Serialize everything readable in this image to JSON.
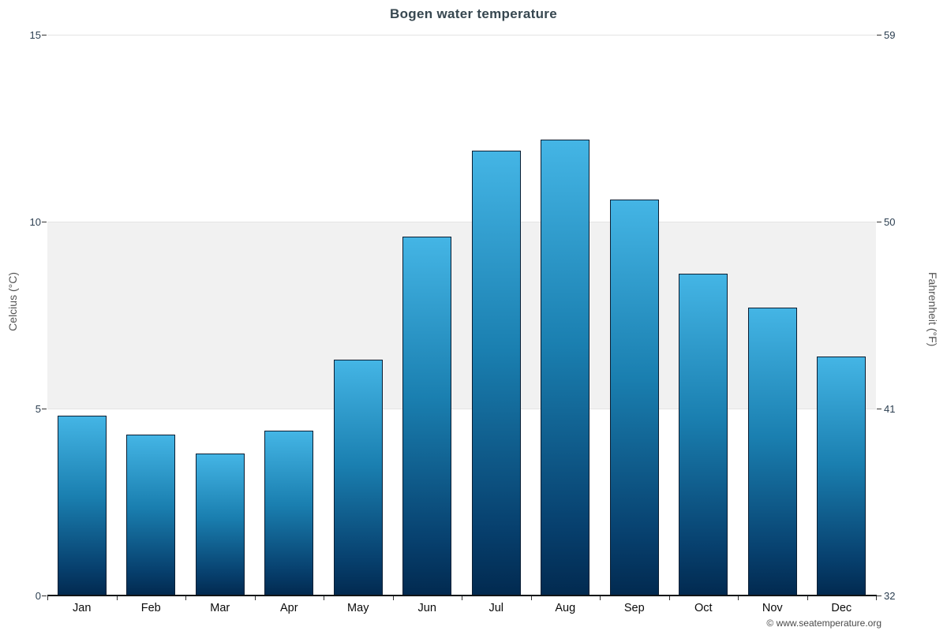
{
  "title": "Bogen water temperature",
  "chart_data": {
    "type": "bar",
    "title": "Bogen water temperature",
    "categories": [
      "Jan",
      "Feb",
      "Mar",
      "Apr",
      "May",
      "Jun",
      "Jul",
      "Aug",
      "Sep",
      "Oct",
      "Nov",
      "Dec"
    ],
    "values": [
      4.8,
      4.3,
      3.8,
      4.4,
      6.3,
      9.6,
      11.9,
      12.2,
      10.6,
      8.6,
      7.7,
      6.4
    ],
    "xlabel": "",
    "ylabel_left": "Celcius (°C)",
    "ylabel_right": "Fahrenheit (°F)",
    "ylim": [
      0,
      15
    ],
    "yticks_left": [
      0,
      5,
      10,
      15
    ],
    "yticks_right": [
      32,
      41,
      50,
      59
    ],
    "band": {
      "from": 5,
      "to": 10,
      "color": "#f1f1f1"
    },
    "grid": "horizontal lines at 5, 10, 15",
    "legend": "none",
    "bar_gradient": [
      "#44b5e5",
      "#1a7fb0",
      "#022a50"
    ],
    "bar_border_color": "#0a1e33"
  },
  "footer": {
    "copyright": "© www.seatemperature.org"
  }
}
